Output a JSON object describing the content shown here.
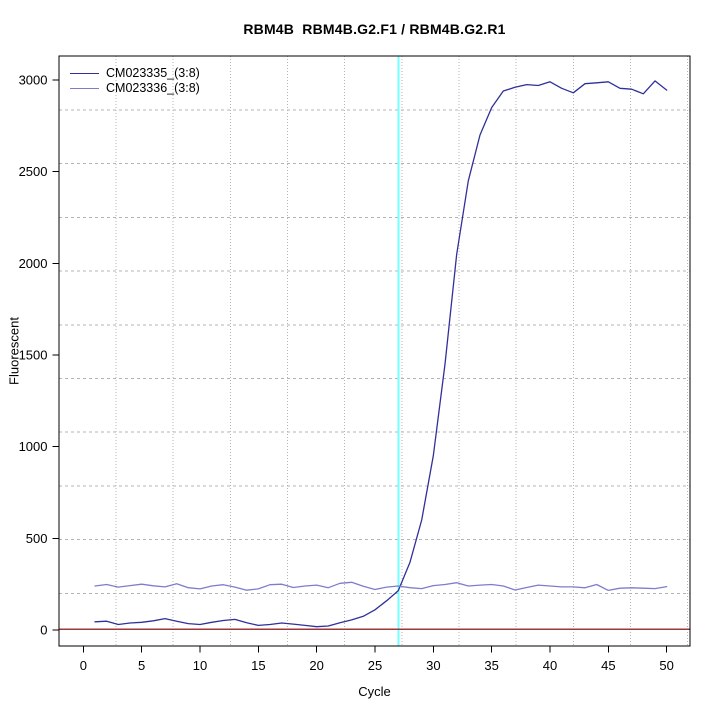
{
  "title": "RBM4B  RBM4B.G2.F1 / RBM4B.G2.R1",
  "axes": {
    "x_label": "Cycle",
    "y_label": "Fluorescent",
    "x_ticks": [
      0,
      5,
      10,
      15,
      20,
      25,
      30,
      35,
      40,
      45,
      50
    ],
    "y_ticks": [
      0,
      500,
      1000,
      1500,
      2000,
      2500,
      3000
    ]
  },
  "legend": {
    "position": "top-left",
    "items": [
      {
        "label": "CM023335_(3:8)",
        "color": "#30309a"
      },
      {
        "label": "CM023336_(3:8)",
        "color": "#7d7dcc"
      }
    ]
  },
  "colors": {
    "series1": "#30309a",
    "series2": "#7d7dcc",
    "threshold_cycle_line": "#76ffff",
    "zero_baseline_line": "#9c3838",
    "grid": "#b4b4b4",
    "axis": "#000000",
    "background": "#ffffff"
  },
  "chart_data": {
    "type": "line",
    "title": "RBM4B  RBM4B.G2.F1 / RBM4B.G2.R1",
    "xlabel": "Cycle",
    "ylabel": "Fluorescent",
    "xlim": [
      -2.1,
      52.1
    ],
    "ylim": [
      -90,
      3130
    ],
    "grid": {
      "on": true,
      "x_lines": [
        2.8,
        7.7,
        12.6,
        17.5,
        22.4,
        27.3,
        32.2,
        37.1,
        42.0,
        46.9,
        51.8
      ],
      "y_lines": [
        200,
        493,
        786,
        1079,
        1372,
        1665,
        1958,
        2251,
        2544,
        2837
      ]
    },
    "threshold_cycle_vline": {
      "x": 27,
      "color": "#76ffff"
    },
    "zero_baseline_hline": {
      "y": 0,
      "color": "#9c3838"
    },
    "x": [
      1,
      2,
      3,
      4,
      5,
      6,
      7,
      8,
      9,
      10,
      11,
      12,
      13,
      14,
      15,
      16,
      17,
      18,
      19,
      20,
      21,
      22,
      23,
      24,
      25,
      26,
      27,
      28,
      29,
      30,
      31,
      32,
      33,
      34,
      35,
      36,
      37,
      38,
      39,
      40,
      41,
      42,
      43,
      44,
      45,
      46,
      47,
      48,
      49,
      50
    ],
    "series": [
      {
        "name": "CM023335_(3:8)",
        "color": "#30309a",
        "values": [
          45,
          48,
          30,
          38,
          42,
          50,
          62,
          48,
          35,
          30,
          42,
          52,
          58,
          40,
          25,
          30,
          38,
          32,
          25,
          18,
          22,
          40,
          55,
          75,
          110,
          160,
          215,
          370,
          600,
          950,
          1450,
          2050,
          2450,
          2700,
          2850,
          2940,
          2960,
          2975,
          2970,
          2990,
          2955,
          2930,
          2980,
          2985,
          2990,
          2955,
          2950,
          2925,
          2995,
          2945
        ]
      },
      {
        "name": "CM023336_(3:8)",
        "color": "#7d7dcc",
        "values": [
          240,
          248,
          234,
          242,
          250,
          241,
          235,
          252,
          231,
          224,
          240,
          247,
          234,
          217,
          224,
          247,
          250,
          232,
          240,
          245,
          231,
          255,
          260,
          239,
          221,
          234,
          240,
          231,
          226,
          242,
          248,
          258,
          240,
          245,
          248,
          240,
          218,
          232,
          245,
          240,
          235,
          235,
          230,
          248,
          216,
          228,
          230,
          228,
          226,
          237
        ]
      }
    ],
    "legend_position": "top-left"
  }
}
